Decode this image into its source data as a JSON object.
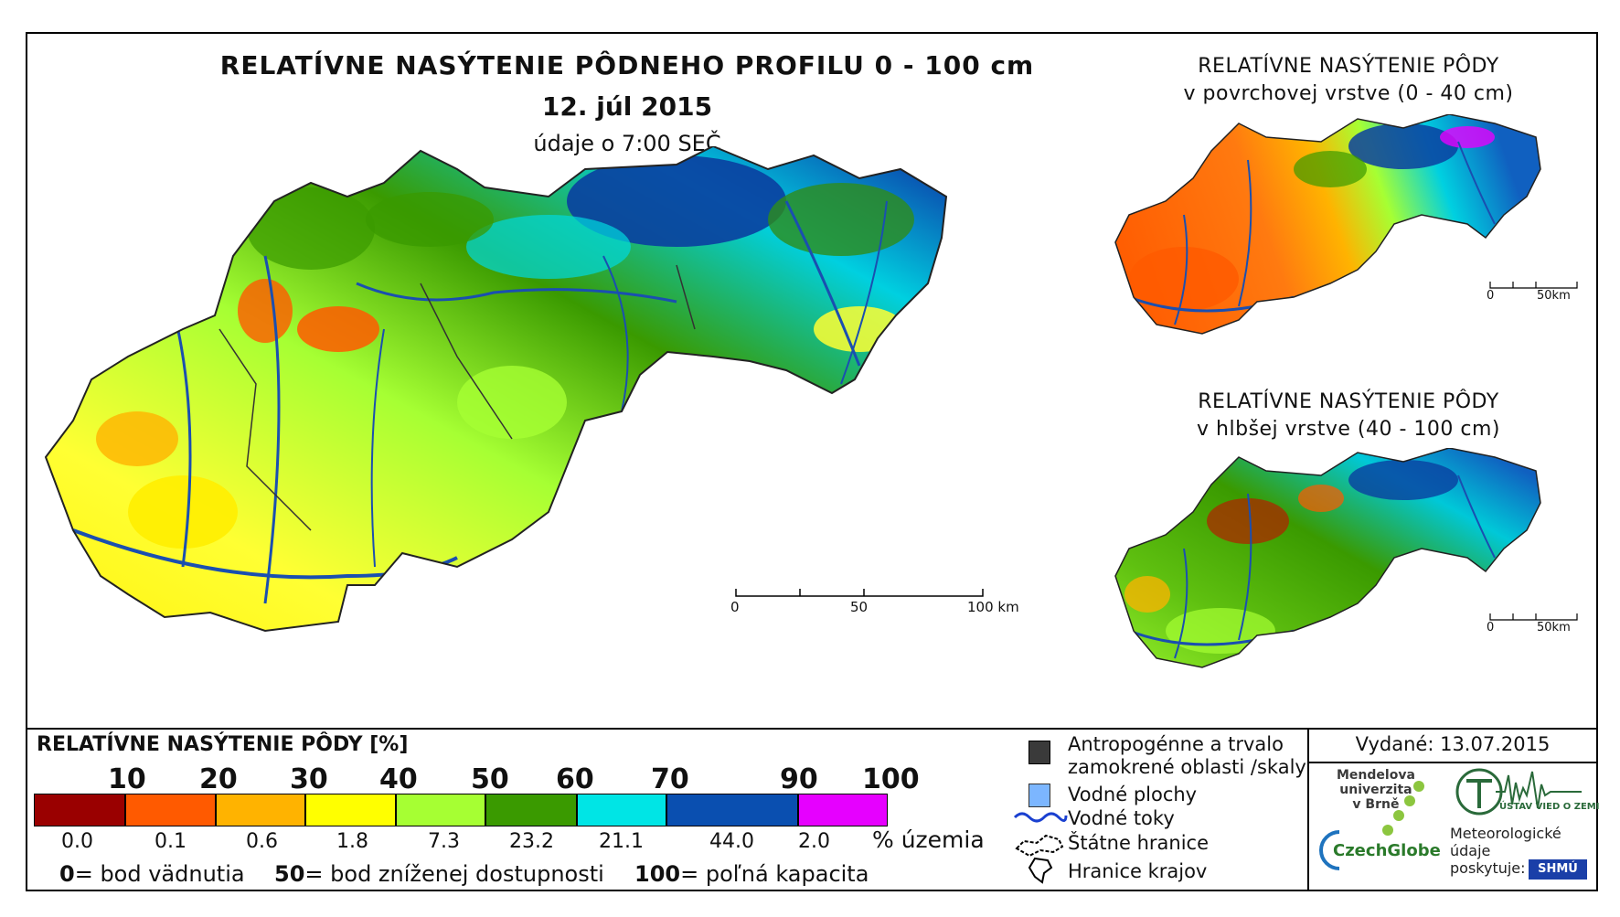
{
  "map": {
    "title": "RELATÍVNE NASÝTENIE PÔDNEHO PROFILU 0 - 100 cm",
    "date": "12. júl 2015",
    "time_note": "údaje o 7:00 SEČ",
    "scale": {
      "labels": [
        "0",
        "50",
        "100 km"
      ]
    }
  },
  "inset_surface": {
    "title_line1": "RELATÍVNE NASÝTENIE PÔDY",
    "title_line2": "v povrchovej vrstve (0 - 40 cm)",
    "scale": {
      "labels": [
        "0",
        "50km"
      ]
    }
  },
  "inset_deep": {
    "title_line1": "RELATÍVNE NASÝTENIE PÔDY",
    "title_line2": "v hlbšej vrstve (40 - 100 cm)",
    "scale": {
      "labels": [
        "0",
        "50km"
      ]
    }
  },
  "legend": {
    "title": "RELATÍVNE NASÝTENIE PÔDY [%]",
    "breaks": [
      "10",
      "20",
      "30",
      "40",
      "50",
      "60",
      "70",
      "90",
      "100"
    ],
    "classes": [
      {
        "color": "#9a0000",
        "percent": "0.0"
      },
      {
        "color": "#ff5a00",
        "percent": "0.1"
      },
      {
        "color": "#ffb300",
        "percent": "0.6"
      },
      {
        "color": "#ffff00",
        "percent": "1.8"
      },
      {
        "color": "#a6ff33",
        "percent": "7.3"
      },
      {
        "color": "#3a9a00",
        "percent": "23.2"
      },
      {
        "color": "#00e5e5",
        "percent": "21.1"
      },
      {
        "color": "#0a4fb0",
        "percent": "44.0"
      },
      {
        "color": "#e600ff",
        "percent": "2.0"
      }
    ],
    "unit_label": "% územia",
    "notes": [
      {
        "value": "0",
        "text": "= bod vädnutia"
      },
      {
        "value": "50",
        "text": "= bod zníženej dostupnosti"
      },
      {
        "value": "100",
        "text": "= poľná kapacita"
      }
    ]
  },
  "symbols": {
    "anthropogenic": "Antropogénne a trvalo zamokrené oblasti /skaly",
    "anthropogenic_line1": "Antropogénne a trvalo",
    "anthropogenic_line2": "zamokrené oblasti /skaly",
    "water_bodies": "Vodné plochy",
    "rivers": "Vodné toky",
    "state_border": "Štátne hranice",
    "region_border": "Hranice krajov"
  },
  "credits": {
    "issued": "Vydané: 13.07.2015",
    "mendel_line1": "Mendelova",
    "mendel_line2": "univerzita",
    "mendel_line3": "v Brně",
    "czechglobe": "CzechGlobe",
    "ustav": "ÚSTAV VIED O ZEMI",
    "meteo_line1": "Meteorologické",
    "meteo_line2": "údaje",
    "meteo_line3": "poskytuje:",
    "shmu": "SHMÚ"
  }
}
